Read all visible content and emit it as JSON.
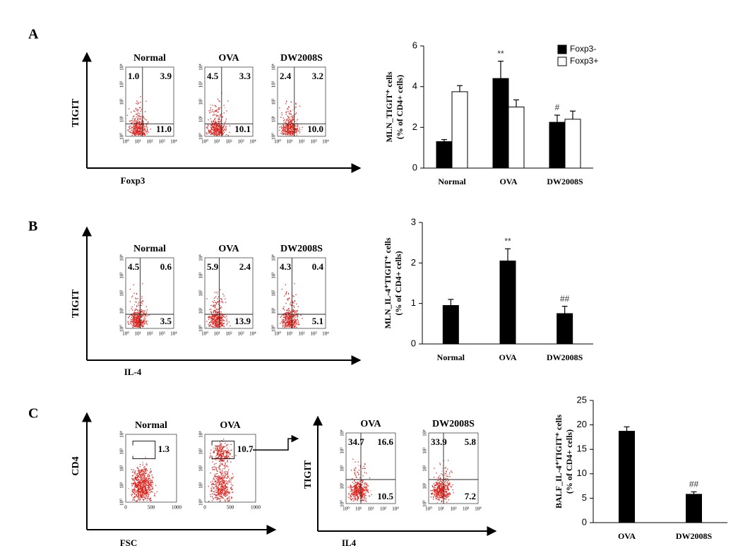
{
  "figure": {
    "log_ticks": [
      "10⁰",
      "10¹",
      "10²",
      "10³",
      "10⁴"
    ],
    "panels": [
      {
        "label": "A",
        "flow_groups": [
          {
            "y_label": "TIGIT",
            "x_label": "Foxp3",
            "plots": [
              {
                "title": "Normal",
                "quadrants": [
                  "1.0",
                  "3.9",
                  "11.0"
                ]
              },
              {
                "title": "OVA",
                "quadrants": [
                  "4.5",
                  "3.3",
                  "10.1"
                ]
              },
              {
                "title": "DW2008S",
                "quadrants": [
                  "2.4",
                  "3.2",
                  "10.0"
                ]
              }
            ]
          }
        ]
      },
      {
        "label": "B",
        "flow_groups": [
          {
            "y_label": "TIGIT",
            "x_label": "IL-4",
            "plots": [
              {
                "title": "Normal",
                "quadrants": [
                  "4.5",
                  "0.6",
                  "3.5"
                ]
              },
              {
                "title": "OVA",
                "quadrants": [
                  "5.9",
                  "2.4",
                  "13.9"
                ]
              },
              {
                "title": "DW2008S",
                "quadrants": [
                  "4.3",
                  "0.4",
                  "5.1"
                ]
              }
            ]
          }
        ]
      },
      {
        "label": "C",
        "flow_groups": [
          {
            "y_label": "CD4",
            "x_label": "FSC",
            "x_ticks": [
              0,
              500,
              1000
            ],
            "plots": [
              {
                "title": "Normal",
                "gate": "1.3"
              },
              {
                "title": "OVA",
                "gate": "10.7"
              }
            ]
          },
          {
            "y_label": "TIGIT",
            "x_label": "IL4",
            "plots": [
              {
                "title": "OVA",
                "quadrants": [
                  "34.7",
                  "16.6",
                  "10.5"
                ]
              },
              {
                "title": "DW2008S",
                "quadrants": [
                  "33.9",
                  "5.8",
                  "7.2"
                ]
              }
            ]
          }
        ]
      }
    ]
  },
  "chart_data": [
    {
      "type": "bar",
      "y_label": [
        "MLN_TIGIT⁺ cells",
        "(% of CD4+ cells)"
      ],
      "categories": [
        "Normal",
        "OVA",
        "DW2008S"
      ],
      "ylim": [
        0,
        6
      ],
      "yticks": [
        0,
        2,
        4,
        6
      ],
      "legend": "top-right",
      "series": [
        {
          "name": "Foxp3-",
          "color": "#000000",
          "values": [
            1.3,
            4.4,
            2.25
          ],
          "errors": [
            0.1,
            0.85,
            0.35
          ],
          "annotations": [
            null,
            "**",
            "#"
          ]
        },
        {
          "name": "Foxp3+",
          "color": "#ffffff",
          "values": [
            3.75,
            3.0,
            2.4
          ],
          "errors": [
            0.3,
            0.35,
            0.4
          ]
        }
      ]
    },
    {
      "type": "bar",
      "y_label": [
        "MLN_IL-4⁺TIGIT⁺ cells",
        "(% of CD4+ cells)"
      ],
      "categories": [
        "Normal",
        "OVA",
        "DW2008S"
      ],
      "ylim": [
        0,
        3
      ],
      "yticks": [
        0,
        1,
        2,
        3
      ],
      "series": [
        {
          "color": "#000000",
          "values": [
            0.95,
            2.05,
            0.75
          ],
          "errors": [
            0.15,
            0.3,
            0.18
          ],
          "annotations": [
            null,
            "**",
            "##"
          ]
        }
      ]
    },
    {
      "type": "bar",
      "y_label": [
        "BALF_IL-4⁺TIGIT⁺ cells",
        "(% of CD4+ cells)"
      ],
      "categories": [
        "OVA",
        "DW2008S"
      ],
      "ylim": [
        0,
        25
      ],
      "yticks": [
        0,
        5,
        10,
        15,
        20,
        25
      ],
      "series": [
        {
          "color": "#000000",
          "values": [
            18.7,
            5.8
          ],
          "errors": [
            0.9,
            0.5
          ],
          "annotations": [
            null,
            "##"
          ]
        }
      ]
    }
  ]
}
